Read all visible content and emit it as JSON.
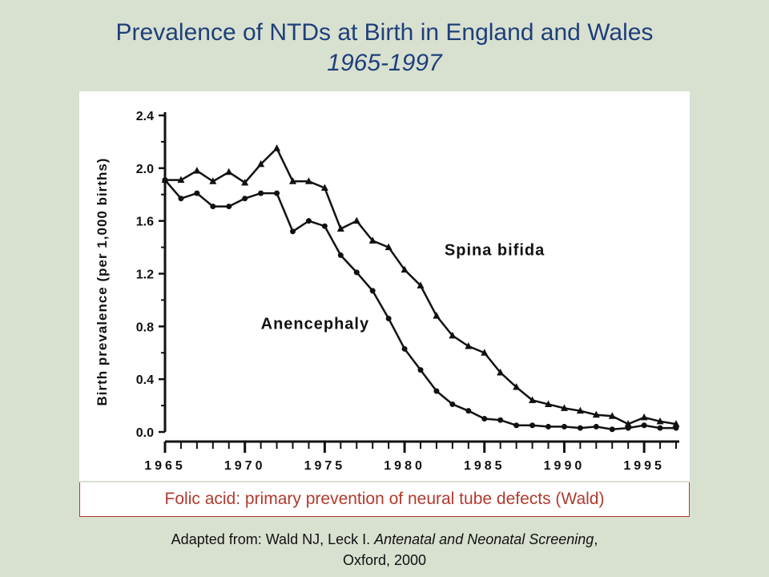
{
  "slide": {
    "title": "Prevalence of NTDs at Birth in England and Wales",
    "subtitle": "1965-1997",
    "caption": "Folic acid: primary prevention of neural tube defects (Wald)",
    "source_prefix": "Adapted from: Wald NJ, Leck I. ",
    "source_italic": "Antenatal and Neonatal Screening",
    "source_suffix": ",",
    "source_line2": "Oxford, 2000",
    "accent_color": "#1f3f7a",
    "caption_color": "#b23a2e"
  },
  "chart_data": {
    "type": "line",
    "title": "",
    "xlabel": "",
    "ylabel": "Birth prevalence (per 1,000 births)",
    "xlim": [
      1965,
      1997
    ],
    "ylim": [
      0.0,
      2.4
    ],
    "x_ticks": [
      "1965",
      "1970",
      "1975",
      "1980",
      "1985",
      "1990",
      "1995"
    ],
    "y_ticks": [
      "0.0",
      "0.4",
      "0.8",
      "1.2",
      "1.6",
      "2.0",
      "2.4"
    ],
    "grid": false,
    "x": [
      1965,
      1966,
      1967,
      1968,
      1969,
      1970,
      1971,
      1972,
      1973,
      1974,
      1975,
      1976,
      1977,
      1978,
      1979,
      1980,
      1981,
      1982,
      1983,
      1984,
      1985,
      1986,
      1987,
      1988,
      1989,
      1990,
      1991,
      1992,
      1993,
      1994,
      1995,
      1996,
      1997
    ],
    "series": [
      {
        "name": "Spina bifida",
        "marker": "triangle",
        "values": [
          1.91,
          1.91,
          1.98,
          1.9,
          1.97,
          1.89,
          2.03,
          2.15,
          1.9,
          1.9,
          1.85,
          1.54,
          1.6,
          1.45,
          1.4,
          1.23,
          1.11,
          0.88,
          0.73,
          0.65,
          0.6,
          0.45,
          0.34,
          0.24,
          0.21,
          0.18,
          0.16,
          0.13,
          0.12,
          0.06,
          0.11,
          0.08,
          0.06
        ]
      },
      {
        "name": "Anencephaly",
        "marker": "circle",
        "values": [
          1.91,
          1.77,
          1.81,
          1.71,
          1.71,
          1.77,
          1.81,
          1.81,
          1.52,
          1.6,
          1.56,
          1.34,
          1.21,
          1.07,
          0.86,
          0.63,
          0.47,
          0.31,
          0.21,
          0.16,
          0.1,
          0.09,
          0.05,
          0.05,
          0.04,
          0.04,
          0.03,
          0.04,
          0.02,
          0.03,
          0.05,
          0.03,
          0.03
        ]
      }
    ]
  }
}
